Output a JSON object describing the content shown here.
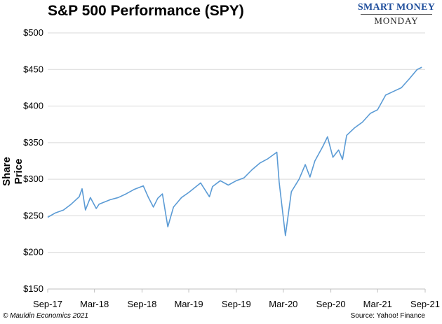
{
  "header": {
    "title": "S&P 500 Performance (SPY)"
  },
  "brand": {
    "top": "SMART MONEY",
    "bottom": "MONDAY"
  },
  "footer": {
    "copyright": "© Mauldin Economics 2021",
    "source": "Source: Yahoo! Finance"
  },
  "chart_data": {
    "type": "line",
    "title": "S&P 500 Performance (SPY)",
    "xlabel": "",
    "ylabel": "Share Price",
    "ylim": [
      150,
      500
    ],
    "y_ticks": [
      150,
      200,
      250,
      300,
      350,
      400,
      450,
      500
    ],
    "y_tick_labels": [
      "$150",
      "$200",
      "$250",
      "$300",
      "$350",
      "$400",
      "$450",
      "$500"
    ],
    "x_tick_labels": [
      "Sep-17",
      "Mar-18",
      "Sep-18",
      "Mar-19",
      "Sep-19",
      "Mar-20",
      "Sep-20",
      "Mar-21",
      "Sep-21"
    ],
    "x_ticks": [
      "2017-09",
      "2018-03",
      "2018-09",
      "2019-03",
      "2019-09",
      "2020-03",
      "2020-09",
      "2021-03",
      "2021-09"
    ],
    "grid": true,
    "line_color": "#5b9bd5",
    "series": [
      {
        "x": [
          "2017-09",
          "2017-10",
          "2017-11",
          "2017-12",
          "2018-01",
          "2018-01-26",
          "2018-02-08",
          "2018-02-27",
          "2018-03-22",
          "2018-04-02",
          "2018-05",
          "2018-06",
          "2018-07",
          "2018-08",
          "2018-09-20",
          "2018-10-10",
          "2018-10-29",
          "2018-11",
          "2018-12-03",
          "2018-12-24",
          "2019-01",
          "2019-02",
          "2019-03",
          "2019-04-30",
          "2019-06-03",
          "2019-06",
          "2019-07",
          "2019-08",
          "2019-09",
          "2019-10",
          "2019-11",
          "2019-12",
          "2020-01",
          "2020-02-19",
          "2020-02-28",
          "2020-03-23",
          "2020-04",
          "2020-05",
          "2020-06-08",
          "2020-06-26",
          "2020-07",
          "2020-08",
          "2020-09-02",
          "2020-09-23",
          "2020-10",
          "2020-10-30",
          "2020-11",
          "2020-12",
          "2021-01",
          "2021-02",
          "2021-03",
          "2021-04",
          "2021-05",
          "2021-06",
          "2021-07",
          "2021-08",
          "2021-09-02"
        ],
        "values": [
          248,
          254,
          258,
          266,
          276,
          287,
          258,
          275,
          260,
          266,
          272,
          275,
          280,
          286,
          291,
          275,
          262,
          274,
          280,
          235,
          262,
          275,
          282,
          295,
          276,
          290,
          298,
          292,
          298,
          302,
          313,
          322,
          328,
          337,
          296,
          223,
          283,
          300,
          320,
          303,
          325,
          345,
          358,
          330,
          340,
          327,
          360,
          370,
          378,
          390,
          395,
          415,
          420,
          425,
          437,
          450,
          453
        ]
      }
    ]
  }
}
